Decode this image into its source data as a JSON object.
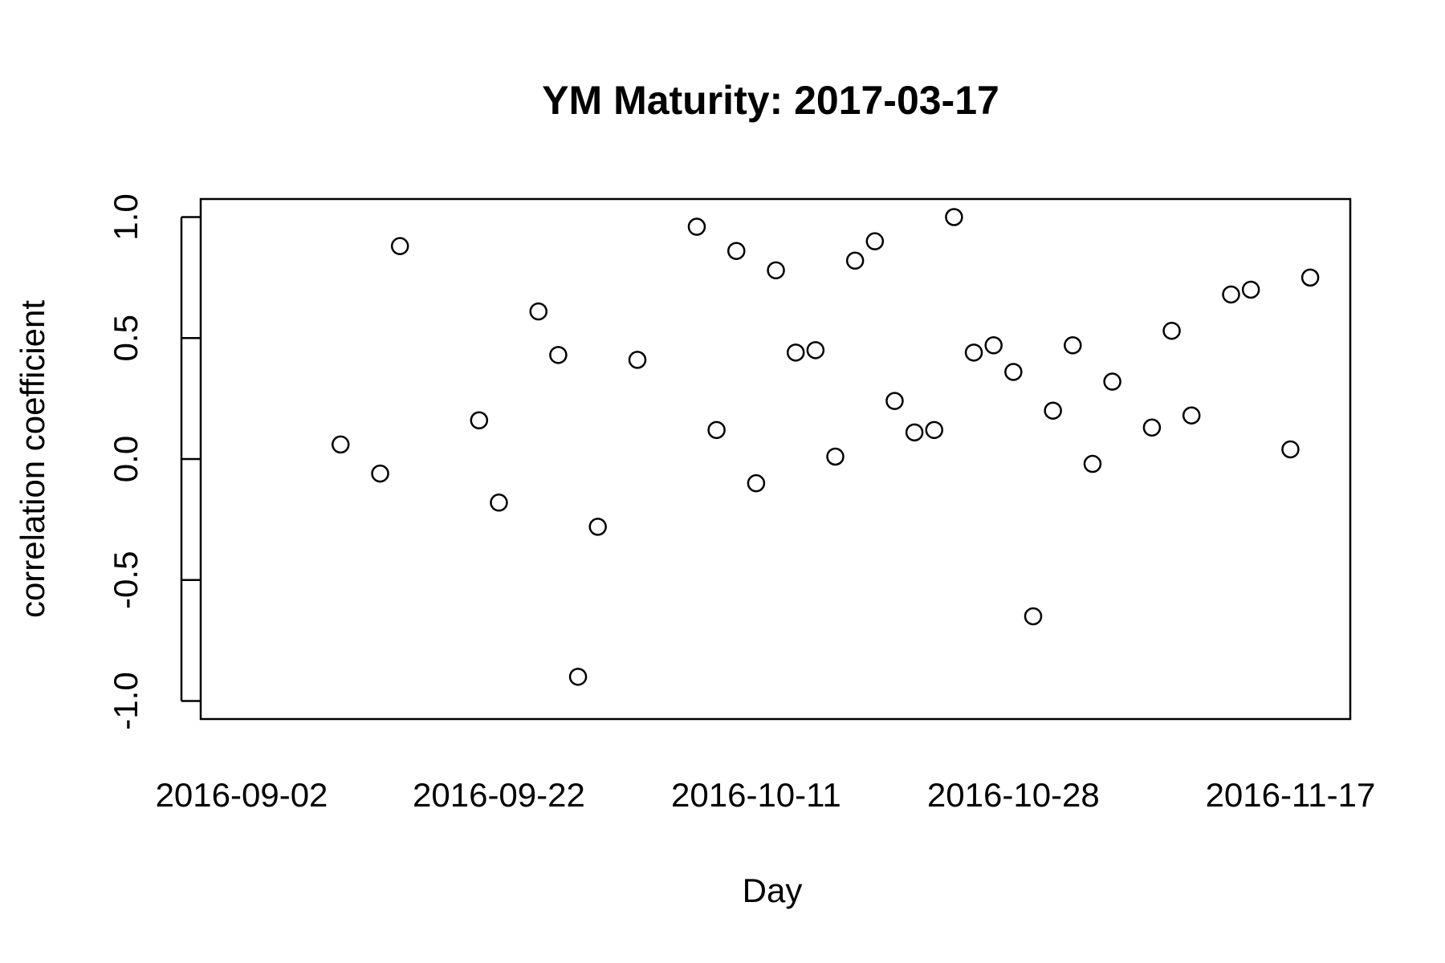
{
  "chart_data": {
    "type": "scatter",
    "title": "YM Maturity: 2017-03-17",
    "xlabel": "Day",
    "ylabel": "correlation coefficient",
    "ylim": [
      -1.0,
      1.0
    ],
    "yticks": [
      -1.0,
      -0.5,
      0.0,
      0.5,
      1.0
    ],
    "ytick_labels": [
      "-1.0",
      "-0.5",
      "0.0",
      "0.5",
      "1.0"
    ],
    "xticks": [
      "2016-09-02",
      "2016-09-22",
      "2016-10-11",
      "2016-10-28",
      "2016-11-17"
    ],
    "x_tick_index": [
      0,
      13,
      26,
      39,
      53
    ],
    "marker": "open-circle",
    "series": [
      {
        "name": "correlation",
        "points": [
          {
            "x": 5,
            "y": 0.06
          },
          {
            "x": 7,
            "y": -0.06
          },
          {
            "x": 8,
            "y": 0.88
          },
          {
            "x": 12,
            "y": 0.16
          },
          {
            "x": 13,
            "y": -0.18
          },
          {
            "x": 15,
            "y": 0.61
          },
          {
            "x": 16,
            "y": 0.43
          },
          {
            "x": 17,
            "y": -0.9
          },
          {
            "x": 18,
            "y": -0.28
          },
          {
            "x": 20,
            "y": 0.41
          },
          {
            "x": 23,
            "y": 0.96
          },
          {
            "x": 24,
            "y": 0.12
          },
          {
            "x": 25,
            "y": 0.86
          },
          {
            "x": 26,
            "y": -0.1
          },
          {
            "x": 27,
            "y": 0.78
          },
          {
            "x": 28,
            "y": 0.44
          },
          {
            "x": 29,
            "y": 0.45
          },
          {
            "x": 30,
            "y": 0.01
          },
          {
            "x": 31,
            "y": 0.82
          },
          {
            "x": 32,
            "y": 0.9
          },
          {
            "x": 33,
            "y": 0.24
          },
          {
            "x": 34,
            "y": 0.11
          },
          {
            "x": 35,
            "y": 0.12
          },
          {
            "x": 36,
            "y": 1.0
          },
          {
            "x": 37,
            "y": 0.44
          },
          {
            "x": 38,
            "y": 0.47
          },
          {
            "x": 39,
            "y": 0.36
          },
          {
            "x": 40,
            "y": -0.65
          },
          {
            "x": 41,
            "y": 0.2
          },
          {
            "x": 42,
            "y": 0.47
          },
          {
            "x": 43,
            "y": -0.02
          },
          {
            "x": 44,
            "y": 0.32
          },
          {
            "x": 46,
            "y": 0.13
          },
          {
            "x": 47,
            "y": 0.53
          },
          {
            "x": 48,
            "y": 0.18
          },
          {
            "x": 50,
            "y": 0.68
          },
          {
            "x": 51,
            "y": 0.7
          },
          {
            "x": 53,
            "y": 0.04
          },
          {
            "x": 54,
            "y": 0.75
          }
        ]
      }
    ]
  }
}
